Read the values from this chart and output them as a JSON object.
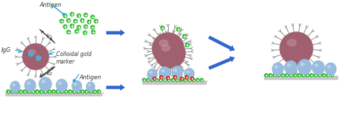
{
  "bg_color": "#ffffff",
  "fig_width": 5.0,
  "fig_height": 1.83,
  "dpi": 100,
  "gold_color": "#a06070",
  "gold_highlight": "#cc9aaa",
  "ab_stroke": "#888888",
  "ag_free_color": "#33bb33",
  "ag_bound_color": "#cc3311",
  "mem_sphere_color": "#99bbdd",
  "mem_sphere_highlight": "#bbddee",
  "membrane_color": "#cccccc",
  "membrane_hatch": "#999999",
  "arrow_color": "#3366cc",
  "cyan_color": "#22aacc",
  "text_color": "#333333",
  "labels": {
    "antigen_top": "Antigen",
    "IgG": "IgG",
    "colloidal_gold": "Colloidal gold\nmarker",
    "antigen_bottom": "Antigen",
    "k1": "k₁",
    "k2": "k₂"
  }
}
